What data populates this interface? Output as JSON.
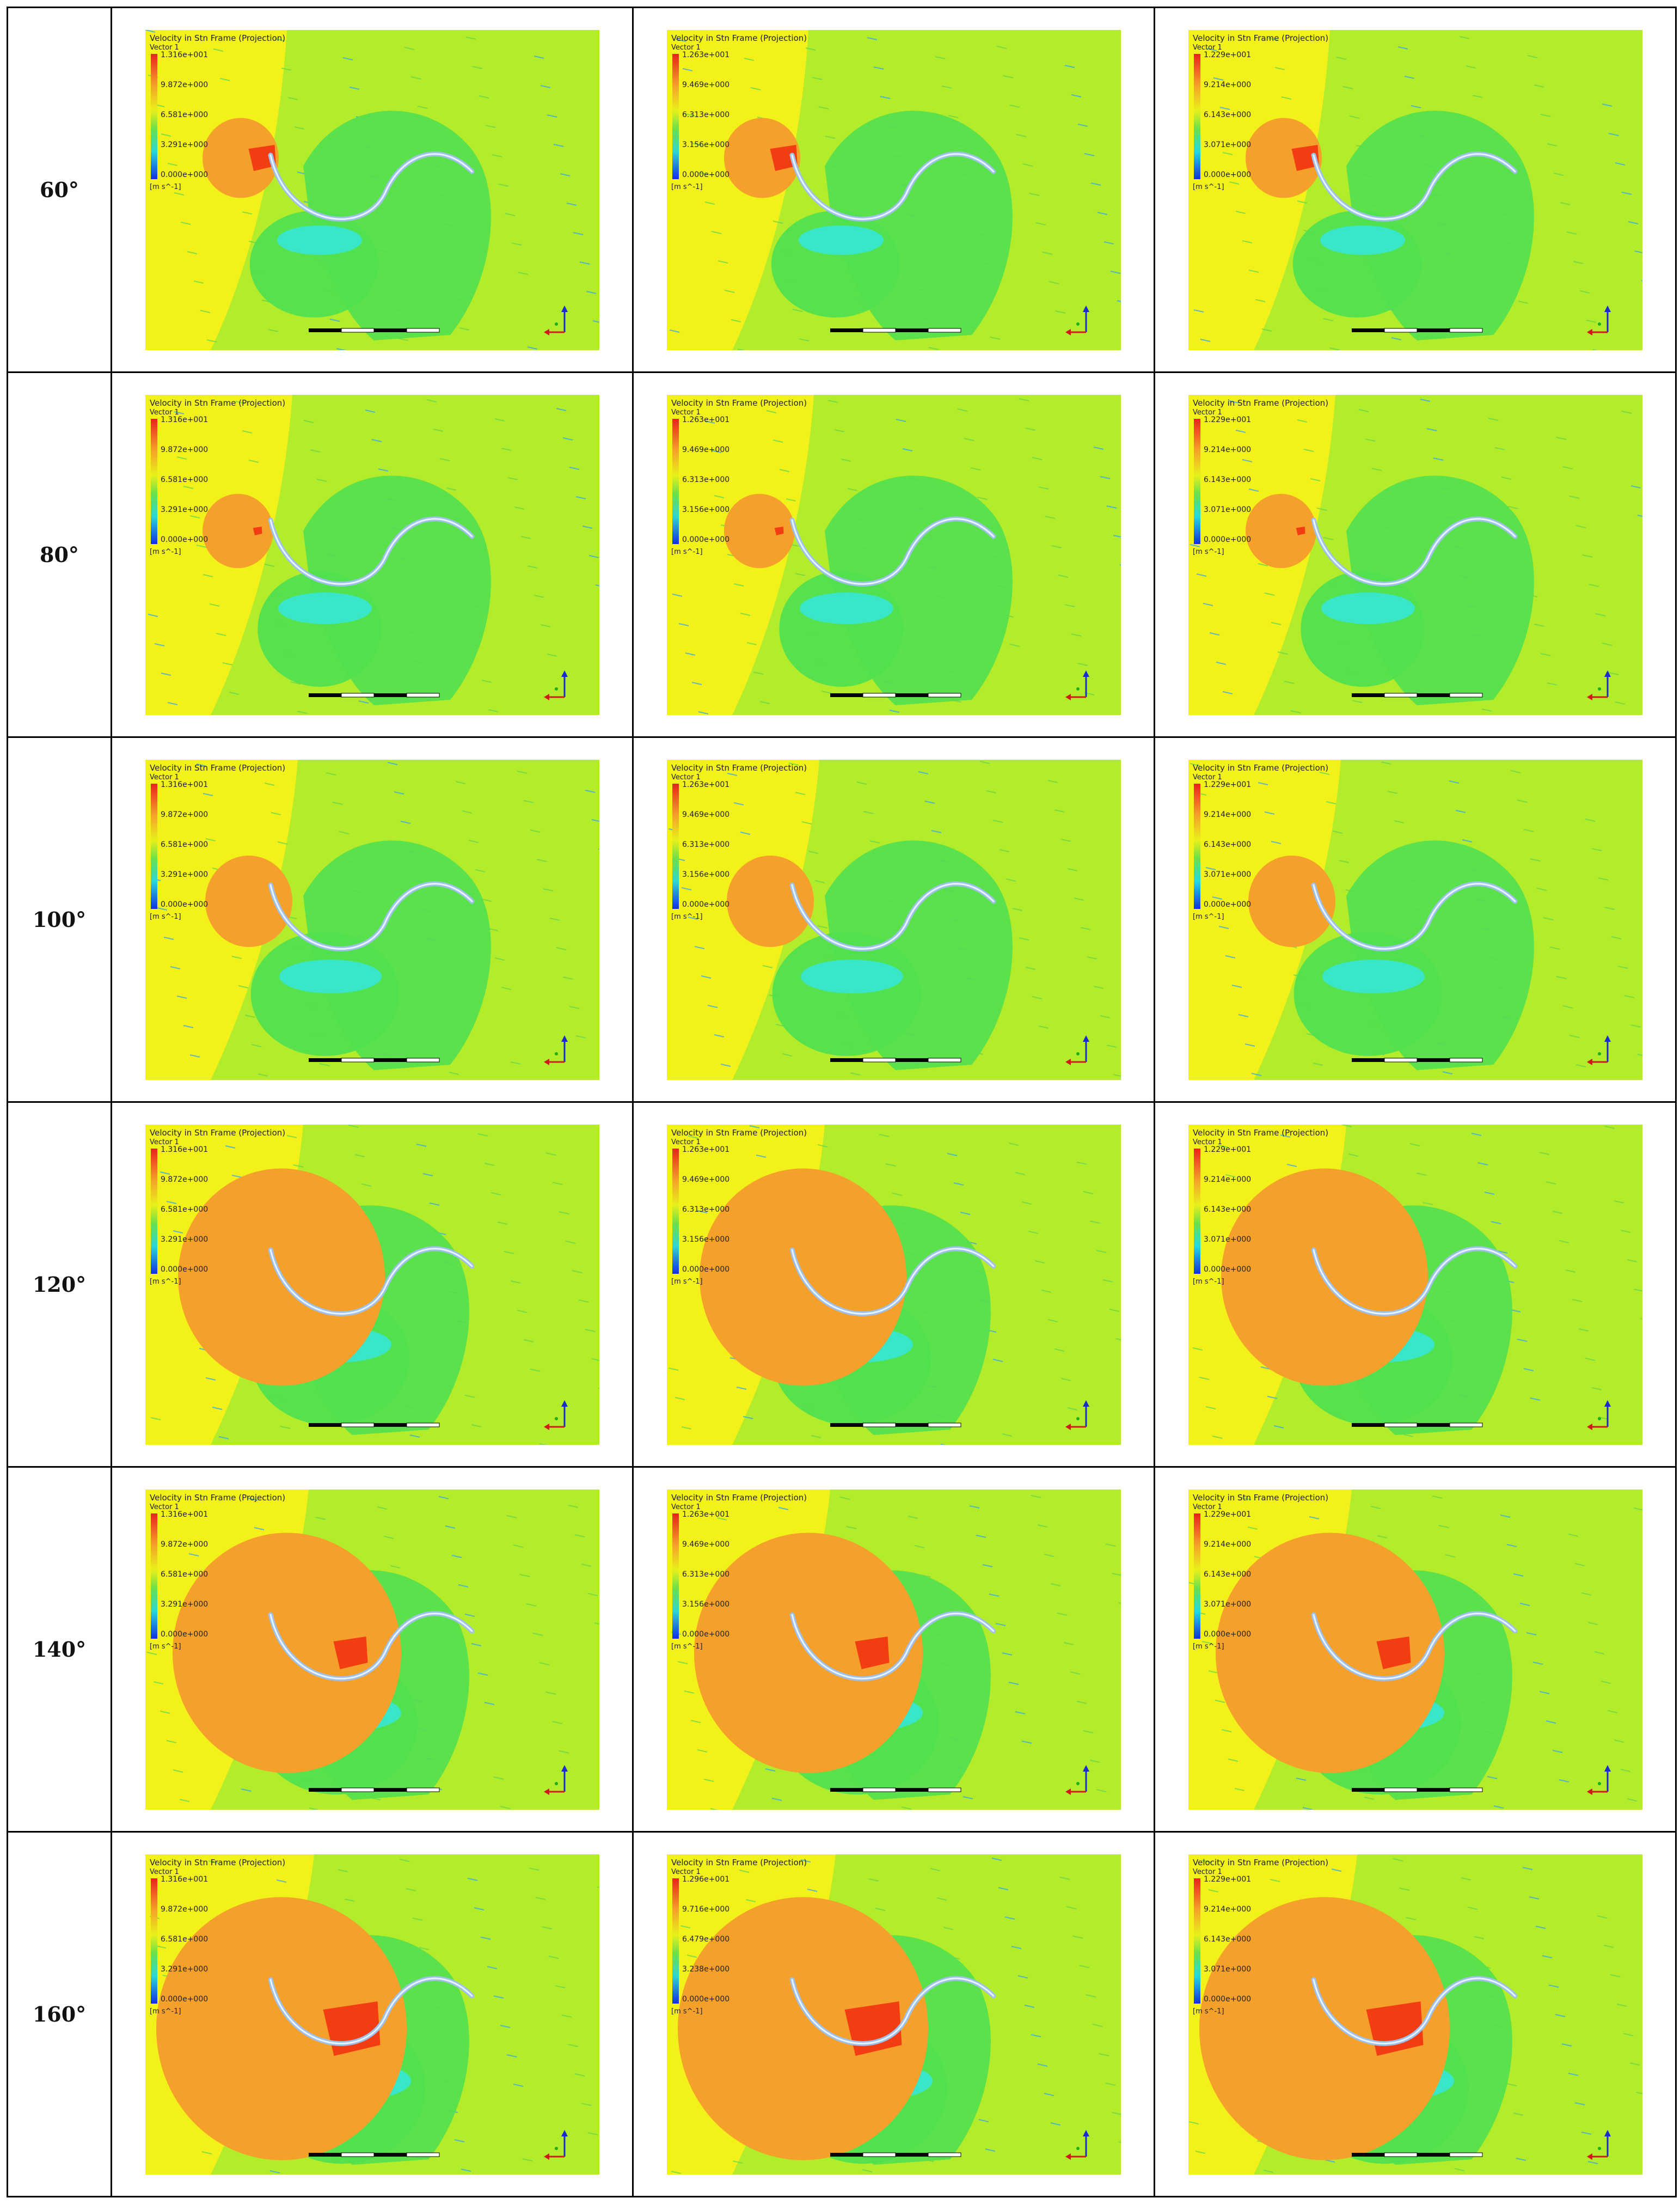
{
  "rows": [
    {
      "angle": "60°",
      "panels": [
        {
          "title": "Velocity in Stn Frame (Projection)",
          "sub": "Vector 1",
          "ticks": [
            "1.316e+001",
            "9.872e+000",
            "6.581e+000",
            "3.291e+000",
            "0.000e+000"
          ],
          "unit": "[m s^-1]",
          "stage": 1
        },
        {
          "title": "Velocity in Stn Frame (Projection)",
          "sub": "Vector 1",
          "ticks": [
            "1.263e+001",
            "9.469e+000",
            "6.313e+000",
            "3.156e+000",
            "0.000e+000"
          ],
          "unit": "[m s^-1]",
          "stage": 1
        },
        {
          "title": "Velocity in Stn Frame (Projection)",
          "sub": "Vector 1",
          "ticks": [
            "1.229e+001",
            "9.214e+000",
            "6.143e+000",
            "3.071e+000",
            "0.000e+000"
          ],
          "unit": "[m s^-1]",
          "stage": 1
        }
      ]
    },
    {
      "angle": "80°",
      "panels": [
        {
          "title": "Velocity in Stn Frame (Projection)",
          "sub": "Vector 1",
          "ticks": [
            "1.316e+001",
            "9.872e+000",
            "6.581e+000",
            "3.291e+000",
            "0.000e+000"
          ],
          "unit": "[m s^-1]",
          "stage": 2
        },
        {
          "title": "Velocity in Stn Frame (Projection)",
          "sub": "Vector 1",
          "ticks": [
            "1.263e+001",
            "9.469e+000",
            "6.313e+000",
            "3.156e+000",
            "0.000e+000"
          ],
          "unit": "[m s^-1]",
          "stage": 2
        },
        {
          "title": "Velocity in Stn Frame (Projection)",
          "sub": "Vector 1",
          "ticks": [
            "1.229e+001",
            "9.214e+000",
            "6.143e+000",
            "3.071e+000",
            "0.000e+000"
          ],
          "unit": "[m s^-1]",
          "stage": 2
        }
      ]
    },
    {
      "angle": "100°",
      "panels": [
        {
          "title": "Velocity in Stn Frame (Projection)",
          "sub": "Vector 1",
          "ticks": [
            "1.316e+001",
            "9.872e+000",
            "6.581e+000",
            "3.291e+000",
            "0.000e+000"
          ],
          "unit": "[m s^-1]",
          "stage": 3
        },
        {
          "title": "Velocity in Stn Frame (Projection)",
          "sub": "Vector 1",
          "ticks": [
            "1.263e+001",
            "9.469e+000",
            "6.313e+000",
            "3.156e+000",
            "0.000e+000"
          ],
          "unit": "[m s^-1]",
          "stage": 3
        },
        {
          "title": "Velocity in Stn Frame (Projection)",
          "sub": "Vector 1",
          "ticks": [
            "1.229e+001",
            "9.214e+000",
            "6.143e+000",
            "3.071e+000",
            "0.000e+000"
          ],
          "unit": "[m s^-1]",
          "stage": 3
        }
      ]
    },
    {
      "angle": "120°",
      "panels": [
        {
          "title": "Velocity in Stn Frame (Projection)",
          "sub": "Vector 1",
          "ticks": [
            "1.316e+001",
            "9.872e+000",
            "6.581e+000",
            "3.291e+000",
            "0.000e+000"
          ],
          "unit": "[m s^-1]",
          "stage": 4
        },
        {
          "title": "Velocity in Stn Frame (Projection)",
          "sub": "Vector 1",
          "ticks": [
            "1.263e+001",
            "9.469e+000",
            "6.313e+000",
            "3.156e+000",
            "0.000e+000"
          ],
          "unit": "[m s^-1]",
          "stage": 4
        },
        {
          "title": "Velocity in Stn Frame (Projection)",
          "sub": "Vector 1",
          "ticks": [
            "1.229e+001",
            "9.214e+000",
            "6.143e+000",
            "3.071e+000",
            "0.000e+000"
          ],
          "unit": "[m s^-1]",
          "stage": 4
        }
      ]
    },
    {
      "angle": "140°",
      "panels": [
        {
          "title": "Velocity in Stn Frame (Projection)",
          "sub": "Vector 1",
          "ticks": [
            "1.316e+001",
            "9.872e+000",
            "6.581e+000",
            "3.291e+000",
            "0.000e+000"
          ],
          "unit": "[m s^-1]",
          "stage": 5
        },
        {
          "title": "Velocity in Stn Frame (Projection)",
          "sub": "Vector 1",
          "ticks": [
            "1.263e+001",
            "9.469e+000",
            "6.313e+000",
            "3.156e+000",
            "0.000e+000"
          ],
          "unit": "[m s^-1]",
          "stage": 5
        },
        {
          "title": "Velocity in Stn Frame (Projection)",
          "sub": "Vector 1",
          "ticks": [
            "1.229e+001",
            "9.214e+000",
            "6.143e+000",
            "3.071e+000",
            "0.000e+000"
          ],
          "unit": "[m s^-1]",
          "stage": 5
        }
      ]
    },
    {
      "angle": "160°",
      "panels": [
        {
          "title": "Velocity in Stn Frame (Projection)",
          "sub": "Vector 1",
          "ticks": [
            "1.316e+001",
            "9.872e+000",
            "6.581e+000",
            "3.291e+000",
            "0.000e+000"
          ],
          "unit": "[m s^-1]",
          "stage": 6
        },
        {
          "title": "Velocity in Stn Frame (Projection)",
          "sub": "Vector 1",
          "ticks": [
            "1.296e+001",
            "9.716e+000",
            "6.479e+000",
            "3.238e+000",
            "0.000e+000"
          ],
          "unit": "[m s^-1]",
          "stage": 6
        },
        {
          "title": "Velocity in Stn Frame (Projection)",
          "sub": "Vector 1",
          "ticks": [
            "1.229e+001",
            "9.214e+000",
            "6.143e+000",
            "3.071e+000",
            "0.000e+000"
          ],
          "unit": "[m s^-1]",
          "stage": 6
        }
      ]
    }
  ],
  "colors": {
    "background_yellow": "#f2f21a",
    "background_lime": "#b2ec2a",
    "high_orange": "#f5a02a",
    "peak_red": "#f23c12",
    "low_green": "#52e04e",
    "wake_cyan": "#3ae6c8",
    "blade": "#9fc0e8"
  }
}
